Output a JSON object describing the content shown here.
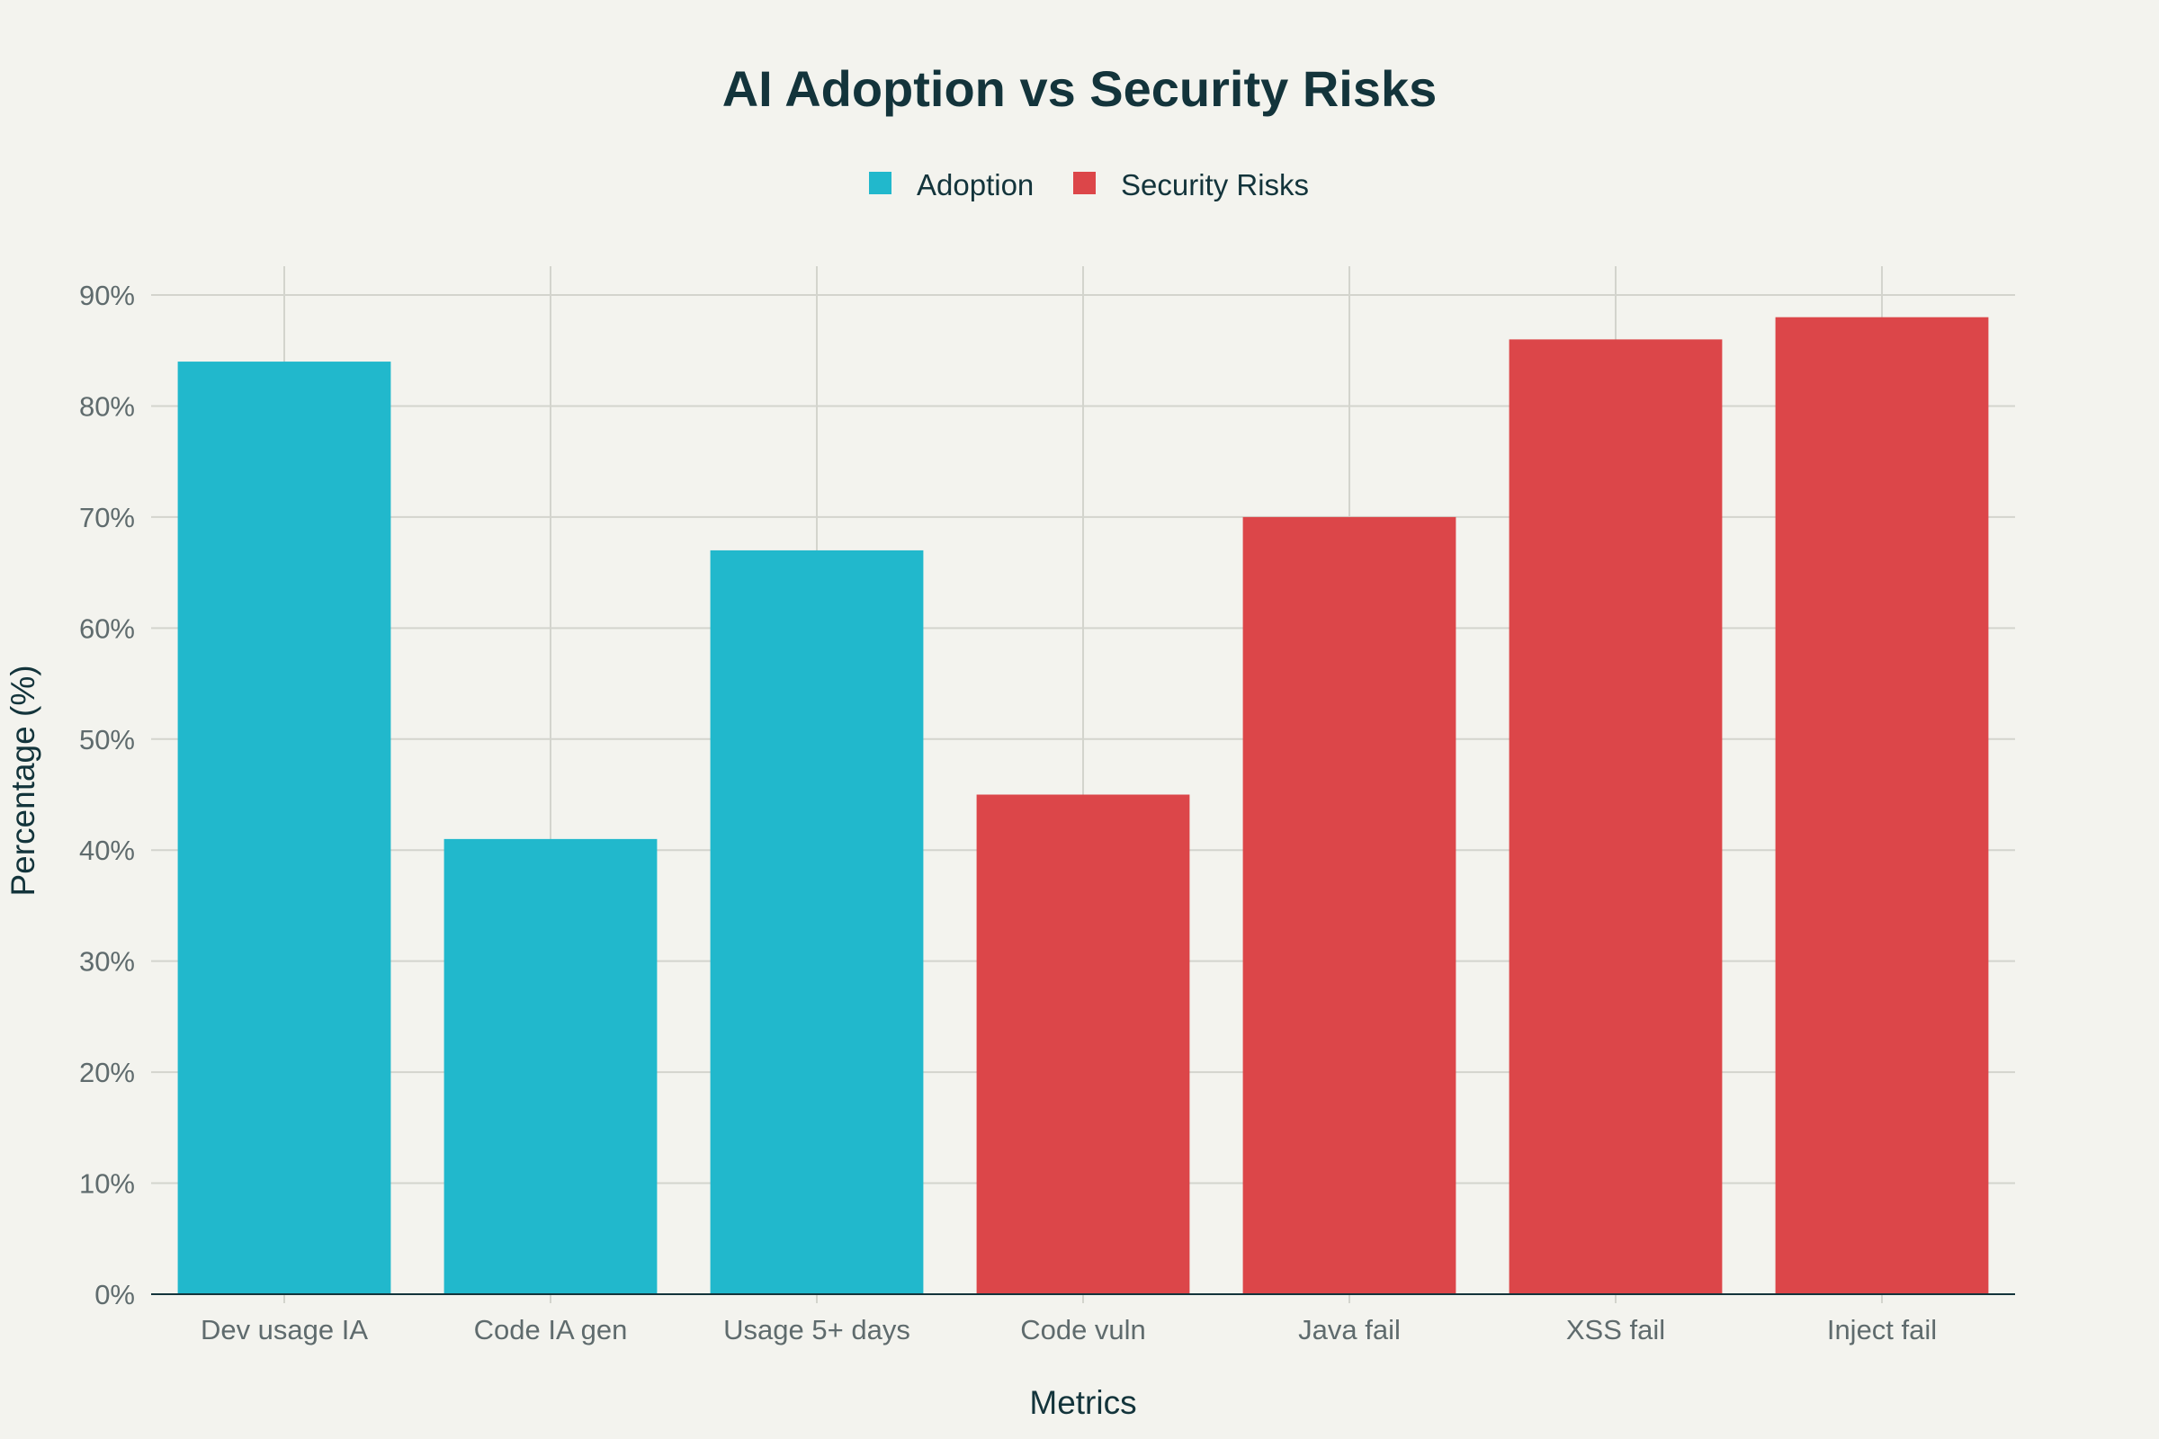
{
  "chart_data": {
    "type": "bar",
    "title": "AI Adoption vs Security Risks",
    "xlabel": "Metrics",
    "ylabel": "Percentage (%)",
    "ylim": [
      0,
      90
    ],
    "ytick_values": [
      0,
      10,
      20,
      30,
      40,
      50,
      60,
      70,
      80,
      90
    ],
    "ytick_labels": [
      "0%",
      "10%",
      "20%",
      "30%",
      "40%",
      "50%",
      "60%",
      "70%",
      "80%",
      "90%"
    ],
    "grid": true,
    "legend_position": "top-center",
    "categories": [
      "Dev usage IA",
      "Code IA gen",
      "Usage 5+ days",
      "Code vuln",
      "Java fail",
      "XSS fail",
      "Inject fail"
    ],
    "series": [
      {
        "name": "Adoption",
        "color": "#21b8cc",
        "values": [
          84,
          41,
          67,
          null,
          null,
          null,
          null
        ]
      },
      {
        "name": "Security Risks",
        "color": "#dc4649",
        "values": [
          null,
          null,
          null,
          45,
          70,
          86,
          88
        ]
      }
    ]
  }
}
